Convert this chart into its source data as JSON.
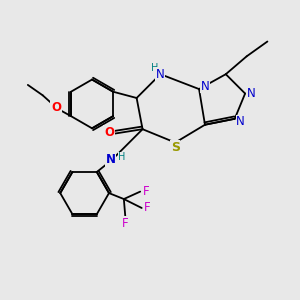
{
  "bg_color": "#e8e8e8",
  "bond_color": "#000000",
  "atom_colors": {
    "N": "#0000cc",
    "O": "#ff0000",
    "S": "#999900",
    "F": "#cc00cc",
    "NH": "#008080",
    "C": "#000000"
  },
  "font_size": 8.5,
  "lw": 1.3
}
